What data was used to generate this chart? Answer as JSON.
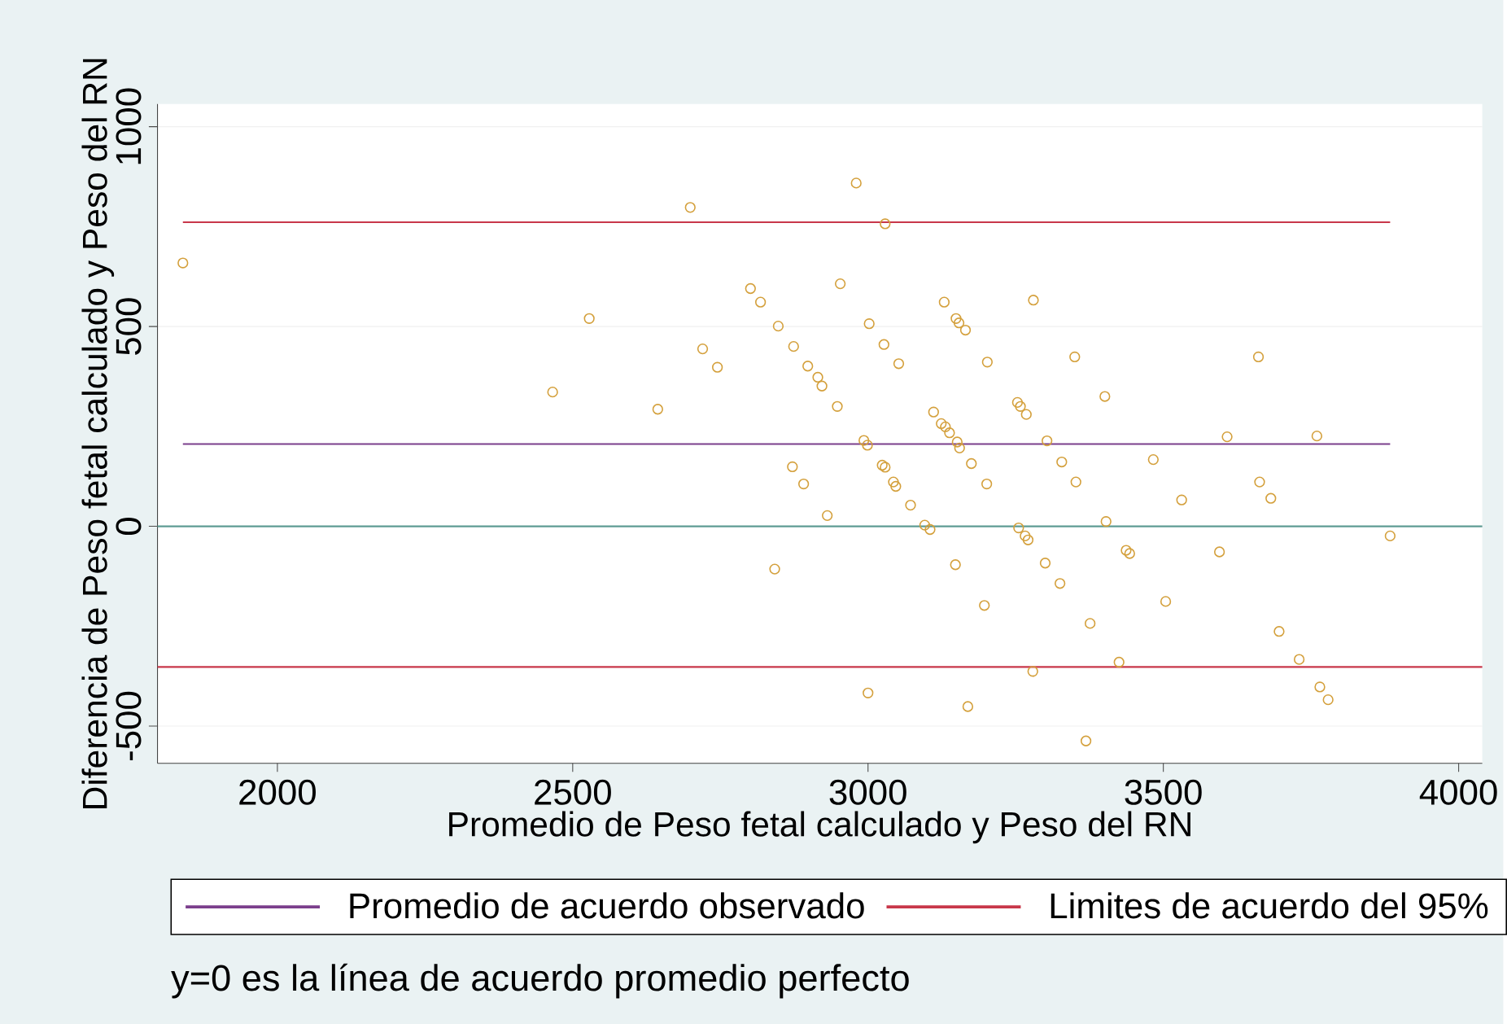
{
  "chart_data": {
    "type": "scatter",
    "xlabel": "Promedio de Peso fetal calculado y Peso del RN",
    "ylabel": "Diferencia de Peso fetal calculado y Peso del RN",
    "xlim": [
      1797,
      4040
    ],
    "ylim": [
      -593,
      1057
    ],
    "xticks": [
      2000,
      2500,
      3000,
      3500,
      4000
    ],
    "yticks": [
      -500,
      0,
      500,
      1000
    ],
    "grid": "y",
    "marker": "circle",
    "legend": "bottom",
    "color": "#d4a03c",
    "x": [
      1840,
      2699,
      2528,
      2466,
      2644,
      2801,
      2818,
      2848,
      2874,
      2720,
      2745,
      2898,
      2915,
      2922,
      2872,
      2980,
      3029,
      2953,
      3129,
      3280,
      3002,
      3149,
      3154,
      3165,
      3027,
      3052,
      3202,
      3350,
      3661,
      3401,
      2948,
      3111,
      3253,
      3258,
      3268,
      3124,
      3131,
      3138,
      2993,
      2999,
      3151,
      3155,
      3303,
      3608,
      3760,
      3024,
      3029,
      3175,
      3328,
      3483,
      3043,
      3047,
      3201,
      3352,
      3531,
      3663,
      3682,
      3072,
      2931,
      3403,
      3096,
      3105,
      3255,
      3266,
      3271,
      3884,
      3437,
      3443,
      3595,
      3148,
      3300,
      3325,
      3197,
      3504,
      3376,
      3696,
      3730,
      3425,
      3279,
      3000,
      3169,
      3765,
      3779,
      3369,
      2891,
      2842
    ],
    "values": [
      659,
      798,
      520,
      336,
      293,
      595,
      561,
      501,
      450,
      444,
      398,
      401,
      373,
      351,
      149,
      859,
      757,
      607,
      561,
      566,
      507,
      520,
      509,
      491,
      455,
      407,
      411,
      424,
      424,
      325,
      300,
      286,
      310,
      300,
      280,
      257,
      249,
      234,
      215,
      203,
      211,
      196,
      214,
      224,
      226,
      153,
      148,
      157,
      161,
      167,
      111,
      100,
      106,
      111,
      66,
      111,
      70,
      53,
      27,
      12,
      3,
      -8,
      -4,
      -24,
      -34,
      -24,
      -60,
      -68,
      -64,
      -96,
      -92,
      -143,
      -198,
      -188,
      -243,
      -263,
      -333,
      -340,
      -363,
      -417,
      -451,
      -402,
      -434,
      -537,
      106,
      -107
    ],
    "ref_lines": [
      {
        "axis": "y",
        "value": 0,
        "color": "#5f9c94"
      },
      {
        "axis": "y",
        "value": 206,
        "label": "Promedio de acuerdo observado",
        "color": "#7b3f8c"
      },
      {
        "axis": "y",
        "value": 761,
        "label": "Limites de acuerdo del 95%",
        "color": "#c8374a"
      },
      {
        "axis": "y",
        "value": -352,
        "color": "#c8374a"
      }
    ],
    "annotations": [
      "y=0 es la línea de acuerdo promedio perfecto"
    ]
  }
}
